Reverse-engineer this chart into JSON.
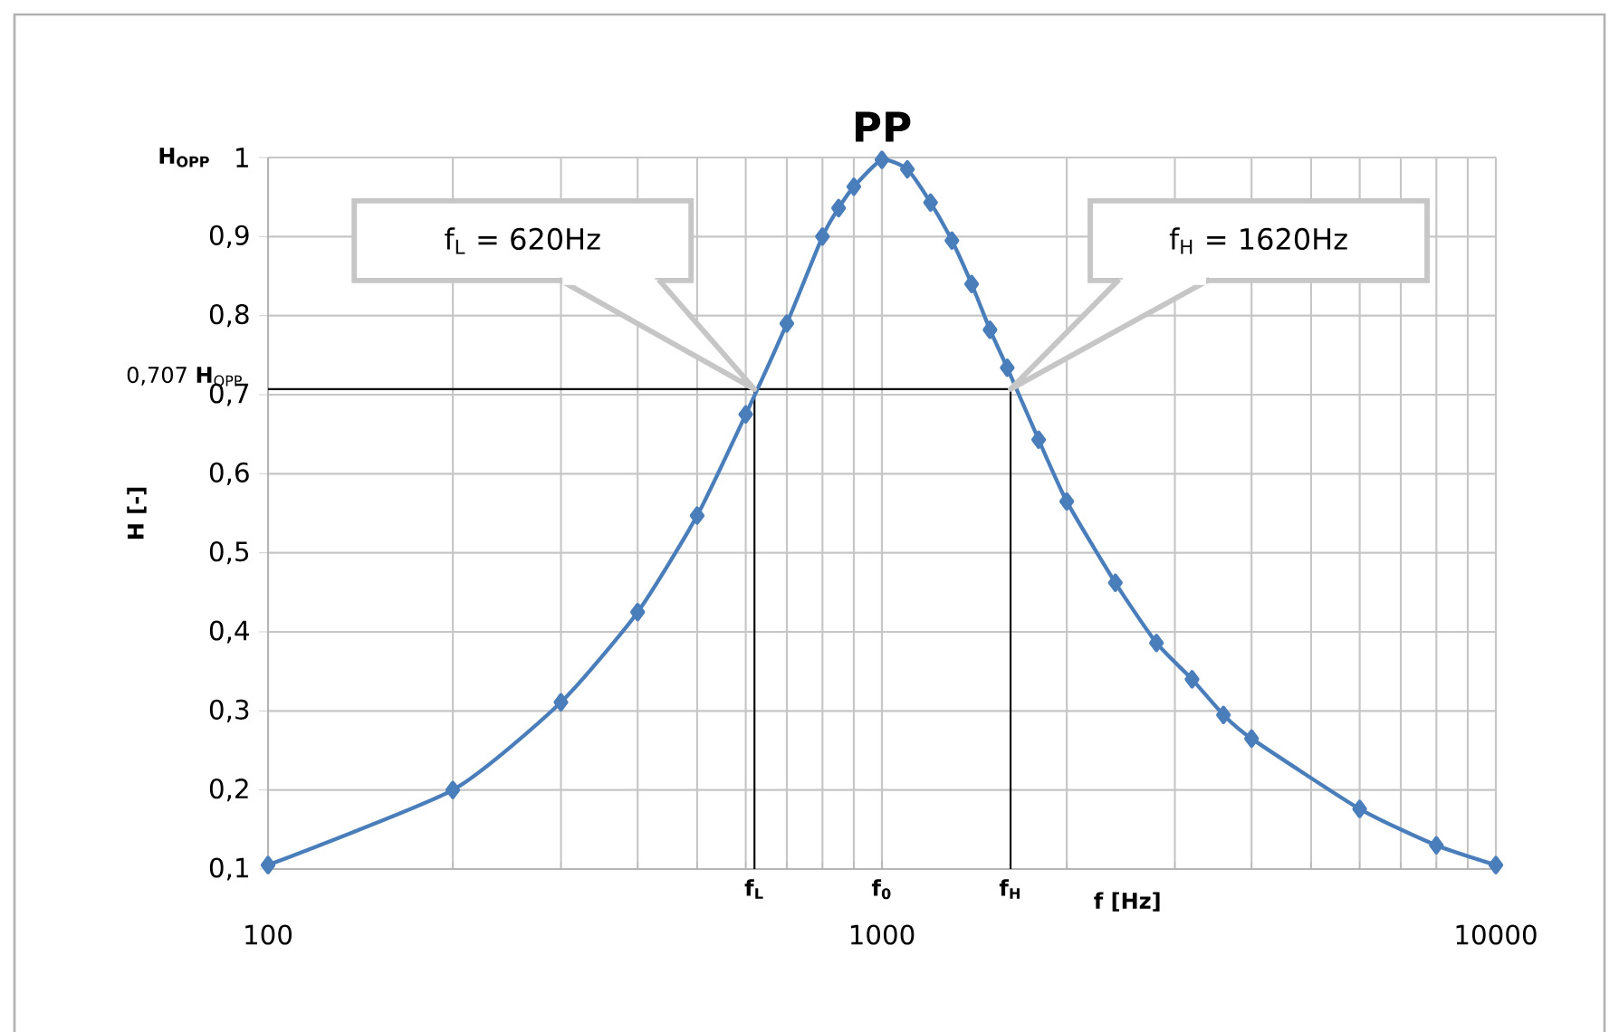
{
  "chart_data": {
    "type": "line",
    "title": "PP",
    "xlabel": "f [Hz]",
    "ylabel": "H [-]",
    "x": [
      100,
      200,
      300,
      400,
      500,
      600,
      700,
      800,
      850,
      900,
      1000,
      1100,
      1200,
      1300,
      1400,
      1500,
      1600,
      1800,
      2000,
      2400,
      2800,
      3200,
      3600,
      4000,
      6000,
      8000,
      10000
    ],
    "series": [
      {
        "color": "#4a7ebb",
        "values": [
          0.105,
          0.2,
          0.311,
          0.425,
          0.547,
          0.675,
          0.79,
          0.9,
          0.936,
          0.963,
          0.997,
          0.985,
          0.943,
          0.895,
          0.84,
          0.782,
          0.734,
          0.643,
          0.565,
          0.462,
          0.386,
          0.34,
          0.295,
          0.265,
          0.176,
          0.13,
          0.105
        ]
      }
    ],
    "log": "x",
    "xlim": [
      100,
      10000
    ],
    "xticks": [
      100,
      1000,
      10000
    ],
    "ylim": [
      0.1,
      1
    ],
    "yticks": [
      {
        "value": 0.1,
        "label": "0,1"
      },
      {
        "value": 0.2,
        "label": "0,2"
      },
      {
        "value": 0.3,
        "label": "0,3"
      },
      {
        "value": 0.4,
        "label": "0,4"
      },
      {
        "value": 0.5,
        "label": "0,5"
      },
      {
        "value": 0.6,
        "label": "0,6"
      },
      {
        "value": 0.7,
        "label": "0,7"
      },
      {
        "value": 0.8,
        "label": "0,8"
      },
      {
        "value": 0.9,
        "label": "0,9"
      },
      1
    ],
    "grid": true,
    "marker": "diamond",
    "line_style": "solid",
    "ref_lines": [
      {
        "axis": "y",
        "value": 0.707,
        "label": "0,707 **H**$_{OPP}$"
      },
      {
        "axis": "x",
        "value": 620,
        "label": "**f**$_{L}$"
      },
      {
        "axis": "x",
        "value": 1620,
        "label": "**f**$_{H}$"
      }
    ],
    "annotations": [
      "f$_{L}$ = 620Hz",
      "f$_{H}$ = 1620Hz",
      "**f**$_{0}$",
      "**H**$_{OPP}$"
    ]
  }
}
